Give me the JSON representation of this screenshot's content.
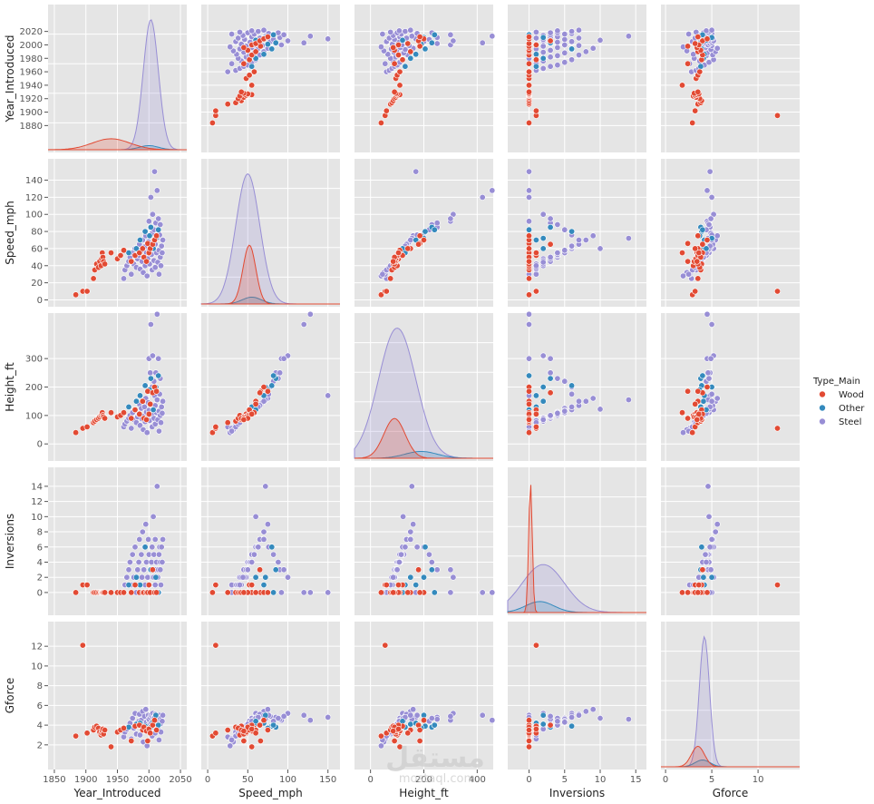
{
  "chart_data": {
    "type": "scatter",
    "subtype": "pairplot",
    "variables": [
      "Year_Introduced",
      "Speed_mph",
      "Height_ft",
      "Inversions",
      "Gforce"
    ],
    "hue": "Type_Main",
    "legend": {
      "title": "Type_Main",
      "placement": "right",
      "entries": [
        {
          "name": "Wood",
          "color": "#E24A33"
        },
        {
          "name": "Other",
          "color": "#348ABD"
        },
        {
          "name": "Steel",
          "color": "#988ED5"
        }
      ]
    },
    "axes": {
      "Year_Introduced": {
        "range": [
          1840,
          2060
        ],
        "ticks": [
          1850,
          1900,
          1950,
          2000,
          2050
        ],
        "y_ticks": [
          1880,
          1900,
          1920,
          1940,
          1960,
          1980,
          2000,
          2020
        ]
      },
      "Speed_mph": {
        "range": [
          -8,
          165
        ],
        "ticks": [
          0,
          50,
          100,
          150
        ],
        "y_ticks": [
          0,
          20,
          40,
          60,
          80,
          100,
          120,
          140
        ]
      },
      "Height_ft": {
        "range": [
          -60,
          460
        ],
        "ticks": [
          0,
          200,
          400
        ],
        "y_ticks": [
          0,
          100,
          200,
          300
        ]
      },
      "Inversions": {
        "range": [
          -3,
          16.5
        ],
        "ticks": [
          0,
          5,
          10,
          15
        ],
        "y_ticks": [
          0,
          2,
          4,
          6,
          8,
          10,
          12,
          14
        ]
      },
      "Gforce": {
        "range": [
          -0.5,
          14.5
        ],
        "ticks": [
          0,
          5,
          10
        ],
        "y_ticks": [
          2,
          4,
          6,
          8,
          10,
          12
        ]
      }
    },
    "points": {
      "Wood": [
        [
          1884,
          6,
          40,
          0,
          2.9
        ],
        [
          1895,
          10,
          55,
          1,
          12.1
        ],
        [
          1902,
          10,
          60,
          1,
          3.2
        ],
        [
          1912,
          25,
          75,
          0,
          3.5
        ],
        [
          1914,
          35,
          80,
          0,
          3.8
        ],
        [
          1917,
          42,
          85,
          0,
          3.9
        ],
        [
          1920,
          38,
          90,
          0,
          3.7
        ],
        [
          1922,
          45,
          95,
          0,
          3.3
        ],
        [
          1924,
          40,
          100,
          0,
          3.0
        ],
        [
          1925,
          48,
          105,
          0,
          3.2
        ],
        [
          1926,
          55,
          110,
          0,
          3.4
        ],
        [
          1927,
          50,
          100,
          0,
          3.6
        ],
        [
          1928,
          45,
          95,
          0,
          3.1
        ],
        [
          1930,
          42,
          90,
          0,
          3.5
        ],
        [
          1940,
          55,
          110,
          0,
          1.8
        ],
        [
          1950,
          48,
          95,
          0,
          3.3
        ],
        [
          1955,
          52,
          100,
          0,
          3.5
        ],
        [
          1960,
          58,
          110,
          0,
          3.7
        ],
        [
          1972,
          45,
          90,
          0,
          2.4
        ],
        [
          1978,
          52,
          120,
          1,
          3.9
        ],
        [
          1985,
          55,
          105,
          0,
          4.0
        ],
        [
          1990,
          60,
          150,
          0,
          3.5
        ],
        [
          1992,
          50,
          90,
          0,
          3.8
        ],
        [
          1996,
          45,
          85,
          0,
          3.4
        ],
        [
          1998,
          66,
          185,
          0,
          2.4
        ],
        [
          2000,
          55,
          105,
          1,
          3.6
        ],
        [
          2002,
          60,
          140,
          0,
          3.2
        ],
        [
          2006,
          65,
          180,
          3,
          4.0
        ],
        [
          2009,
          70,
          200,
          0,
          4.5
        ],
        [
          2012,
          75,
          185,
          0,
          3.5
        ]
      ],
      "Other": [
        [
          1968,
          55,
          130,
          1,
          3.8
        ],
        [
          1980,
          60,
          150,
          2,
          4.1
        ],
        [
          1986,
          70,
          170,
          1,
          4.2
        ],
        [
          1994,
          80,
          205,
          6,
          3.9
        ],
        [
          2001,
          75,
          190,
          0,
          3.7
        ],
        [
          2003,
          85,
          230,
          3,
          3.8
        ],
        [
          2007,
          60,
          120,
          0,
          4.4
        ],
        [
          2011,
          72,
          200,
          2,
          5.0
        ],
        [
          2015,
          82,
          240,
          0,
          4.0
        ]
      ],
      "Steel": [
        [
          1960,
          25,
          60,
          0,
          2.8
        ],
        [
          1962,
          35,
          70,
          1,
          3.3
        ],
        [
          1965,
          40,
          80,
          2,
          3.6
        ],
        [
          1968,
          45,
          90,
          3,
          3.9
        ],
        [
          1970,
          50,
          100,
          4,
          4.2
        ],
        [
          1972,
          30,
          55,
          1,
          2.6
        ],
        [
          1974,
          55,
          110,
          5,
          4.7
        ],
        [
          1976,
          42,
          85,
          2,
          3.7
        ],
        [
          1978,
          60,
          120,
          6,
          5.2
        ],
        [
          1980,
          38,
          75,
          0,
          3.1
        ],
        [
          1982,
          48,
          95,
          3,
          4.0
        ],
        [
          1984,
          52,
          105,
          4,
          4.4
        ],
        [
          1985,
          65,
          140,
          7,
          5.1
        ],
        [
          1986,
          36,
          65,
          1,
          3.0
        ],
        [
          1988,
          58,
          125,
          5,
          4.5
        ],
        [
          1989,
          45,
          88,
          2,
          3.8
        ],
        [
          1990,
          70,
          150,
          8,
          5.4
        ],
        [
          1991,
          32,
          50,
          0,
          2.3
        ],
        [
          1992,
          50,
          98,
          3,
          4.1
        ],
        [
          1993,
          62,
          130,
          6,
          4.9
        ],
        [
          1994,
          40,
          78,
          1,
          3.4
        ],
        [
          1995,
          75,
          160,
          9,
          5.6
        ],
        [
          1996,
          55,
          112,
          4,
          4.3
        ],
        [
          1997,
          28,
          40,
          0,
          1.9
        ],
        [
          1998,
          48,
          92,
          2,
          3.9
        ],
        [
          1999,
          68,
          145,
          7,
          5.0
        ],
        [
          2000,
          92,
          300,
          0,
          4.5
        ],
        [
          2000,
          58,
          118,
          5,
          4.6
        ],
        [
          2001,
          42,
          82,
          1,
          3.5
        ],
        [
          2002,
          85,
          250,
          3,
          4.8
        ],
        [
          2003,
          120,
          420,
          0,
          5.0
        ],
        [
          2004,
          53,
          104,
          4,
          4.2
        ],
        [
          2005,
          78,
          200,
          6,
          4.9
        ],
        [
          2005,
          35,
          60,
          0,
          2.9
        ],
        [
          2006,
          100,
          310,
          2,
          5.2
        ],
        [
          2007,
          60,
          122,
          10,
          4.7
        ],
        [
          2008,
          46,
          90,
          2,
          3.8
        ],
        [
          2008,
          82,
          220,
          5,
          4.4
        ],
        [
          2009,
          150,
          170,
          0,
          4.8
        ],
        [
          2010,
          65,
          135,
          7,
          5.1
        ],
        [
          2010,
          38,
          70,
          1,
          3.2
        ],
        [
          2011,
          90,
          250,
          3,
          4.6
        ],
        [
          2012,
          55,
          110,
          4,
          4.0
        ],
        [
          2013,
          128,
          456,
          0,
          4.5
        ],
        [
          2013,
          72,
          155,
          14,
          4.6
        ],
        [
          2014,
          44,
          85,
          2,
          3.6
        ],
        [
          2015,
          95,
          300,
          3,
          4.9
        ],
        [
          2016,
          58,
          115,
          5,
          4.3
        ],
        [
          2016,
          30,
          45,
          0,
          2.5
        ],
        [
          2017,
          76,
          175,
          6,
          5.0
        ],
        [
          2018,
          50,
          100,
          3,
          4.1
        ],
        [
          2018,
          88,
          230,
          4,
          4.7
        ],
        [
          2019,
          40,
          75,
          1,
          3.3
        ],
        [
          2020,
          63,
          130,
          6,
          4.8
        ],
        [
          2021,
          55,
          108,
          4,
          4.4
        ],
        [
          2022,
          70,
          150,
          7,
          5.0
        ]
      ]
    },
    "kde": {
      "Year_Introduced": {
        "Wood": {
          "mean": 1940,
          "sd": 30,
          "peak": 0.08
        },
        "Other": {
          "mean": 2000,
          "sd": 15,
          "peak": 0.03
        },
        "Steel": {
          "mean": 2003,
          "sd": 12,
          "peak": 0.95
        }
      },
      "Speed_mph": {
        "Wood": {
          "mean": 52,
          "sd": 8,
          "peak": 0.43
        },
        "Other": {
          "mean": 55,
          "sd": 12,
          "peak": 0.05
        },
        "Steel": {
          "mean": 50,
          "sd": 15,
          "peak": 0.95
        }
      },
      "Height_ft": {
        "Wood": {
          "mean": 90,
          "sd": 40,
          "peak": 0.29
        },
        "Other": {
          "mean": 190,
          "sd": 60,
          "peak": 0.05
        },
        "Steel": {
          "mean": 100,
          "sd": 70,
          "peak": 0.95
        }
      },
      "Inversions": {
        "Wood": {
          "mean": 0.2,
          "sd": 0.25,
          "peak": 0.95
        },
        "Other": {
          "mean": 1.5,
          "sd": 2,
          "peak": 0.08
        },
        "Steel": {
          "mean": 2,
          "sd": 3,
          "peak": 0.35
        }
      },
      "Gforce": {
        "Wood": {
          "mean": 3.5,
          "sd": 0.7,
          "peak": 0.15
        },
        "Other": {
          "mean": 4,
          "sd": 0.8,
          "peak": 0.05
        },
        "Steel": {
          "mean": 4.2,
          "sd": 0.55,
          "peak": 0.95
        }
      }
    }
  },
  "watermark": {
    "logo": "مستقل",
    "site": "mostaql.com"
  }
}
